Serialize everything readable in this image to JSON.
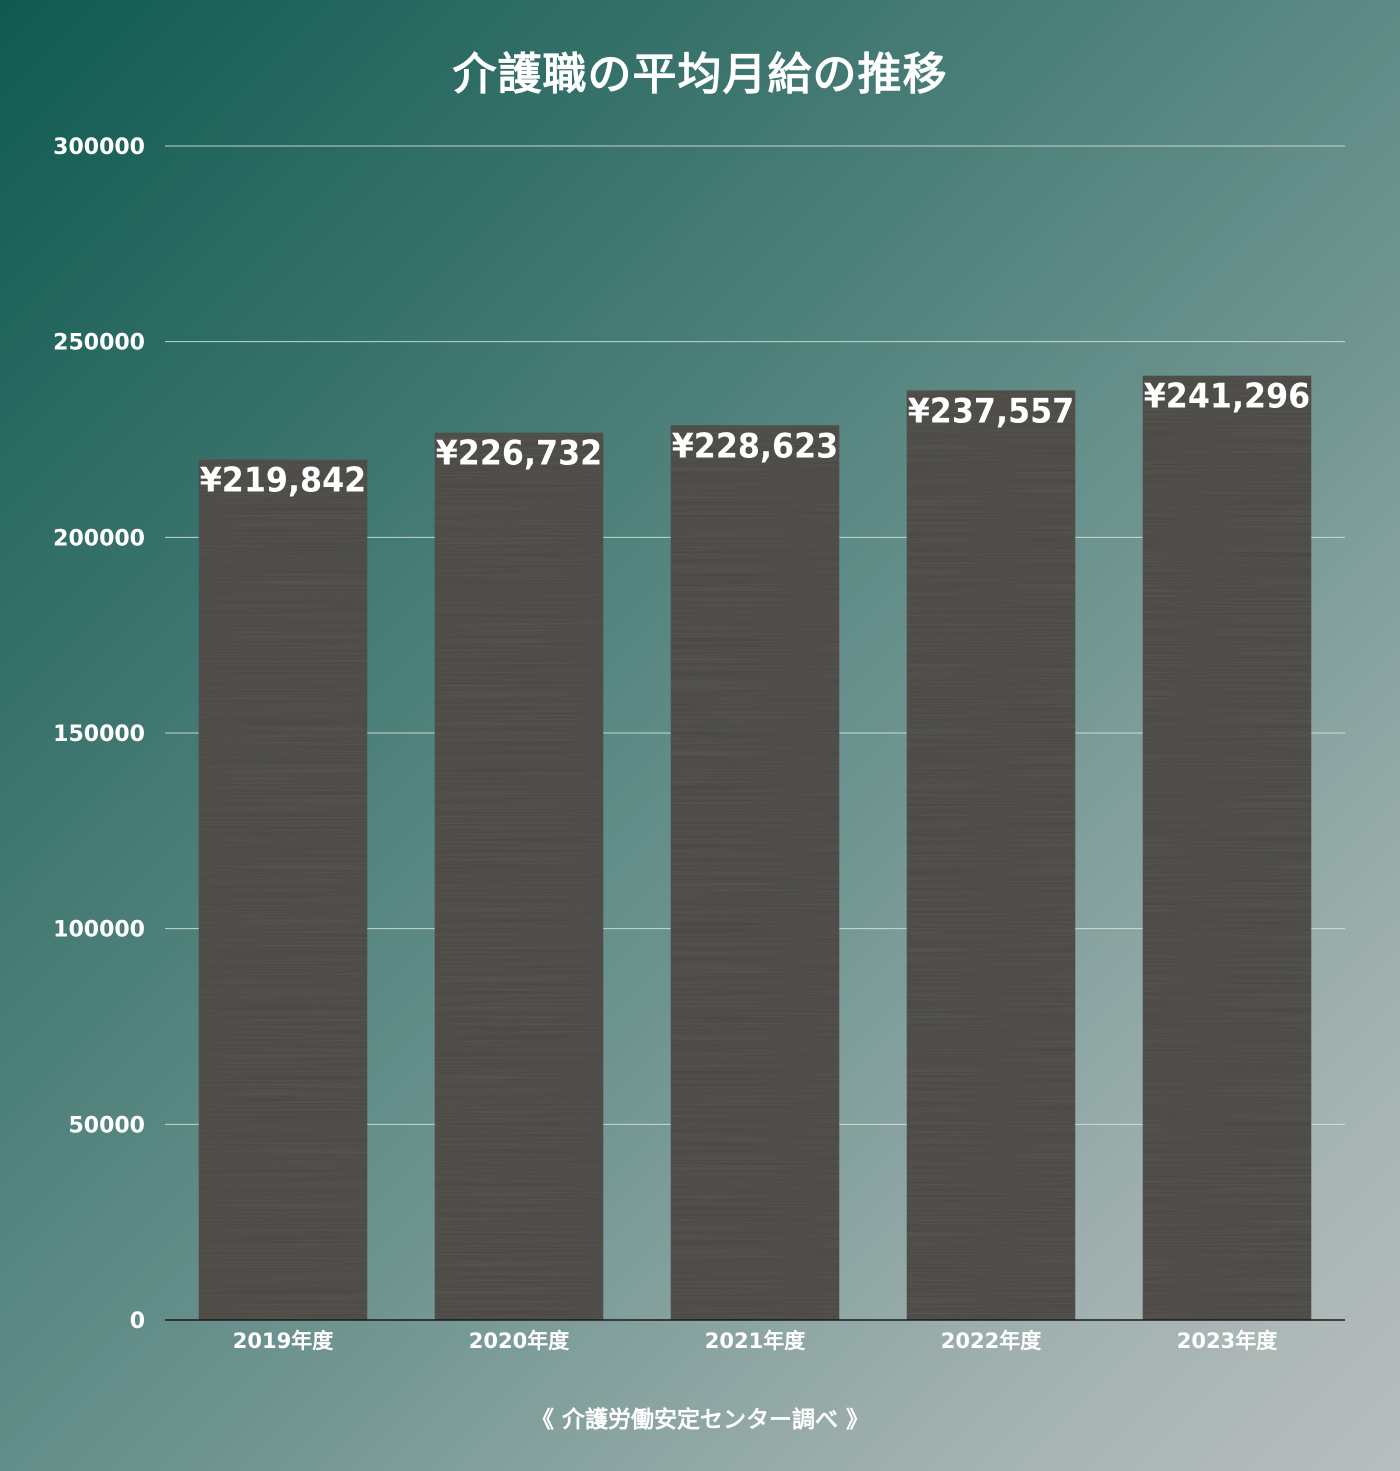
{
  "colors": {
    "bar": "#46443f",
    "grid": "#d8e6e3",
    "axis": "#1a1a1a",
    "text": "#ffffff"
  },
  "chart_data": {
    "type": "bar",
    "title": "介護職の平均月給の推移",
    "categories": [
      "2019年度",
      "2020年度",
      "2021年度",
      "2022年度",
      "2023年度"
    ],
    "values": [
      219842,
      226732,
      228623,
      237557,
      241296
    ],
    "data_labels": [
      "¥219,842",
      "¥226,732",
      "¥228,623",
      "¥237,557",
      "¥241,296"
    ],
    "y_ticks": [
      "0",
      "50000",
      "100000",
      "150000",
      "200000",
      "250000",
      "300000"
    ],
    "ylim": [
      0,
      300000
    ],
    "xlabel": "",
    "ylabel": "",
    "grid": true,
    "legend": "none",
    "source": "《 介護労働安定センター調べ 》"
  }
}
